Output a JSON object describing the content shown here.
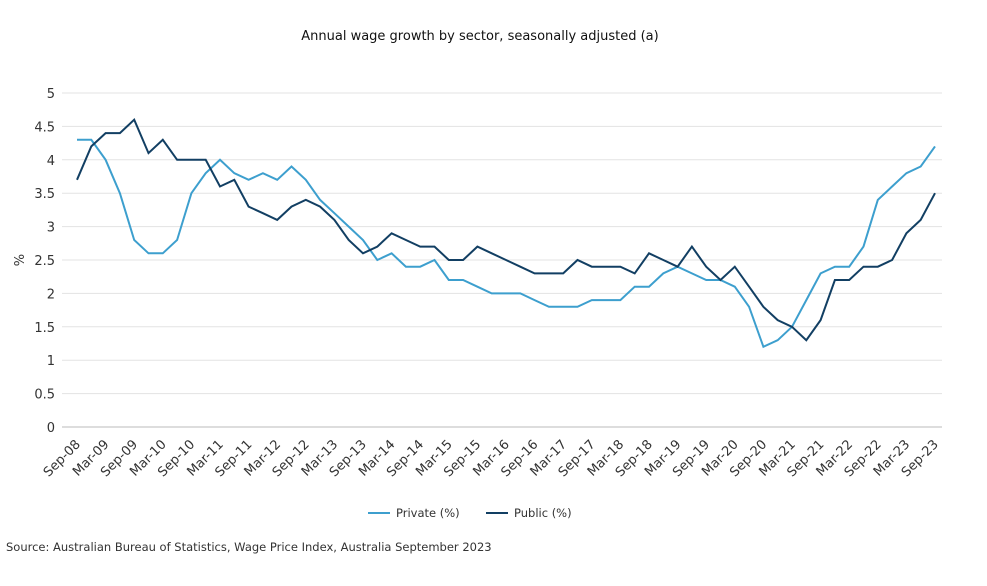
{
  "chart_data": {
    "type": "line",
    "title": "Annual wage growth by sector, seasonally adjusted (a)",
    "y_label": "%",
    "source": "Source: Australian Bureau of Statistics, Wage Price Index, Australia September 2023",
    "categories": [
      "Sep-08",
      null,
      "Mar-09",
      null,
      "Sep-09",
      null,
      "Mar-10",
      null,
      "Sep-10",
      null,
      "Mar-11",
      null,
      "Sep-11",
      null,
      "Mar-12",
      null,
      "Sep-12",
      null,
      "Mar-13",
      null,
      "Sep-13",
      null,
      "Mar-14",
      null,
      "Sep-14",
      null,
      "Mar-15",
      null,
      "Sep-15",
      null,
      "Mar-16",
      null,
      "Sep-16",
      null,
      "Mar-17",
      null,
      "Sep-17",
      null,
      "Mar-18",
      null,
      "Sep-18",
      null,
      "Mar-19",
      null,
      "Sep-19",
      null,
      "Mar-20",
      null,
      "Sep-20",
      null,
      "Mar-21",
      null,
      "Sep-21",
      null,
      "Mar-22",
      null,
      "Sep-22",
      null,
      "Mar-23",
      null,
      "Sep-23"
    ],
    "series": [
      {
        "name": "Private (%)",
        "color": "#3d9fce",
        "values": [
          4.3,
          4.3,
          4.0,
          3.5,
          2.8,
          2.6,
          2.6,
          2.8,
          3.5,
          3.8,
          4.0,
          3.8,
          3.7,
          3.8,
          3.7,
          3.9,
          3.7,
          3.4,
          3.2,
          3.0,
          2.8,
          2.5,
          2.6,
          2.4,
          2.4,
          2.5,
          2.2,
          2.2,
          2.1,
          2.0,
          2.0,
          2.0,
          1.9,
          1.8,
          1.8,
          1.8,
          1.9,
          1.9,
          1.9,
          2.1,
          2.1,
          2.3,
          2.4,
          2.3,
          2.2,
          2.2,
          2.1,
          1.8,
          1.2,
          1.3,
          1.5,
          1.9,
          2.3,
          2.4,
          2.4,
          2.7,
          3.4,
          3.6,
          3.8,
          3.9,
          4.2
        ]
      },
      {
        "name": "Public (%)",
        "color": "#123f63",
        "values": [
          3.7,
          4.2,
          4.4,
          4.4,
          4.6,
          4.1,
          4.3,
          4.0,
          4.0,
          4.0,
          3.6,
          3.7,
          3.3,
          3.2,
          3.1,
          3.3,
          3.4,
          3.3,
          3.1,
          2.8,
          2.6,
          2.7,
          2.9,
          2.8,
          2.7,
          2.7,
          2.5,
          2.5,
          2.7,
          2.6,
          2.5,
          2.4,
          2.3,
          2.3,
          2.3,
          2.5,
          2.4,
          2.4,
          2.4,
          2.3,
          2.6,
          2.5,
          2.4,
          2.7,
          2.4,
          2.2,
          2.4,
          2.1,
          1.8,
          1.6,
          1.5,
          1.3,
          1.6,
          2.2,
          2.2,
          2.4,
          2.4,
          2.5,
          2.9,
          3.1,
          3.5
        ]
      }
    ],
    "ylim": [
      0,
      5
    ],
    "yticks": [
      0,
      0.5,
      1,
      1.5,
      2,
      2.5,
      3,
      3.5,
      4,
      4.5,
      5
    ],
    "grid": true,
    "legend": "bottom"
  }
}
